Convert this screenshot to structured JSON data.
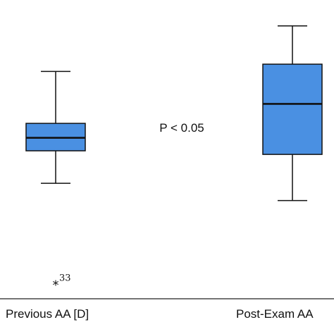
{
  "chart_data": {
    "type": "box",
    "categories": [
      "Previous AA [D]",
      "Post-Exam AA"
    ],
    "boxes": [
      {
        "category": "Previous AA [D]",
        "whisker_low": -0.6,
        "q1": -0.15,
        "median": 0.03,
        "q3": 0.23,
        "whisker_high": 0.95,
        "outliers": [
          {
            "value": -1.97,
            "label": "33"
          }
        ]
      },
      {
        "category": "Post-Exam AA",
        "whisker_low": -0.84,
        "q1": -0.2,
        "median": 0.5,
        "q3": 1.05,
        "whisker_high": 1.58,
        "outliers": []
      }
    ],
    "ylim": [
      -2.2,
      1.9
    ],
    "box_color": "#4a90e2",
    "annotation": "P < 0.05",
    "outlier_symbol": "*",
    "title": "",
    "xlabel": "",
    "ylabel": ""
  }
}
